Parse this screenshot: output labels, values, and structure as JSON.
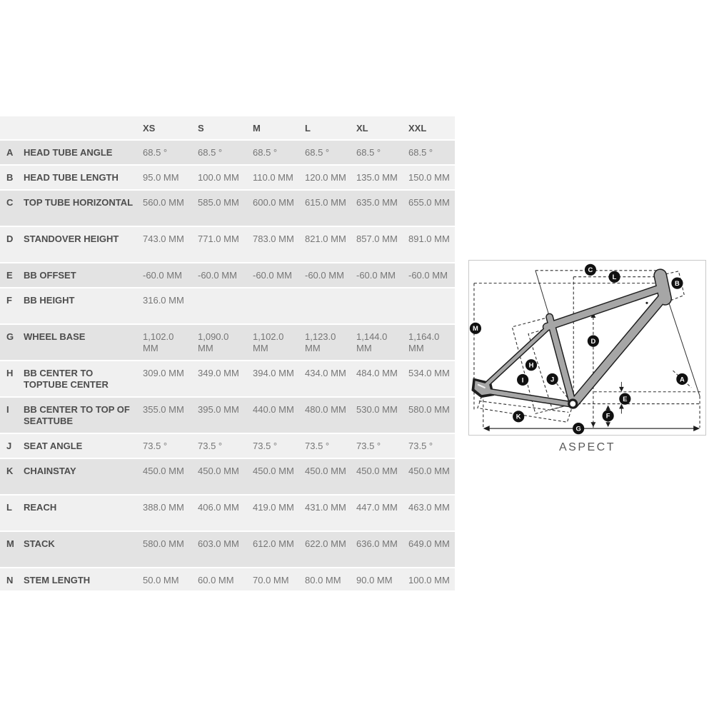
{
  "chart_data": {
    "type": "table",
    "title": "",
    "columns": [
      "XS",
      "S",
      "M",
      "L",
      "XL",
      "XXL"
    ],
    "rows": [
      {
        "letter": "A",
        "label": "HEAD TUBE ANGLE",
        "values": [
          "68.5 °",
          "68.5 °",
          "68.5 °",
          "68.5 °",
          "68.5 °",
          "68.5 °"
        ]
      },
      {
        "letter": "B",
        "label": "HEAD TUBE LENGTH",
        "values": [
          "95.0 MM",
          "100.0 MM",
          "110.0 MM",
          "120.0 MM",
          "135.0 MM",
          "150.0 MM"
        ]
      },
      {
        "letter": "C",
        "label": "TOP TUBE HORIZONTAL",
        "values": [
          "560.0 MM",
          "585.0 MM",
          "600.0 MM",
          "615.0 MM",
          "635.0 MM",
          "655.0 MM"
        ]
      },
      {
        "letter": "D",
        "label": "STANDOVER HEIGHT",
        "values": [
          "743.0 MM",
          "771.0 MM",
          "783.0 MM",
          "821.0 MM",
          "857.0 MM",
          "891.0 MM"
        ]
      },
      {
        "letter": "E",
        "label": "BB OFFSET",
        "values": [
          "-60.0 MM",
          "-60.0 MM",
          "-60.0 MM",
          "-60.0 MM",
          "-60.0 MM",
          "-60.0 MM"
        ]
      },
      {
        "letter": "F",
        "label": "BB HEIGHT",
        "values": [
          "316.0 MM",
          "",
          "",
          "",
          "",
          ""
        ]
      },
      {
        "letter": "G",
        "label": "WHEEL BASE",
        "values": [
          "1,102.0 MM",
          "1,090.0 MM",
          "1,102.0 MM",
          "1,123.0 MM",
          "1,144.0 MM",
          "1,164.0 MM"
        ]
      },
      {
        "letter": "H",
        "label": "BB CENTER TO TOPTUBE CENTER",
        "values": [
          "309.0 MM",
          "349.0 MM",
          "394.0 MM",
          "434.0 MM",
          "484.0 MM",
          "534.0 MM"
        ]
      },
      {
        "letter": "I",
        "label": "BB CENTER TO TOP OF SEATTUBE",
        "values": [
          "355.0 MM",
          "395.0 MM",
          "440.0 MM",
          "480.0 MM",
          "530.0 MM",
          "580.0 MM"
        ]
      },
      {
        "letter": "J",
        "label": "SEAT ANGLE",
        "values": [
          "73.5 °",
          "73.5 °",
          "73.5 °",
          "73.5 °",
          "73.5 °",
          "73.5 °"
        ]
      },
      {
        "letter": "K",
        "label": "CHAINSTAY",
        "values": [
          "450.0 MM",
          "450.0 MM",
          "450.0 MM",
          "450.0 MM",
          "450.0 MM",
          "450.0 MM"
        ]
      },
      {
        "letter": "L",
        "label": "REACH",
        "values": [
          "388.0 MM",
          "406.0 MM",
          "419.0 MM",
          "431.0 MM",
          "447.0 MM",
          "463.0 MM"
        ]
      },
      {
        "letter": "M",
        "label": "STACK",
        "values": [
          "580.0 MM",
          "603.0 MM",
          "612.0 MM",
          "622.0 MM",
          "636.0 MM",
          "649.0 MM"
        ]
      },
      {
        "letter": "N",
        "label": "STEM LENGTH",
        "values": [
          "50.0 MM",
          "60.0 MM",
          "70.0 MM",
          "80.0 MM",
          "90.0 MM",
          "100.0 MM"
        ]
      }
    ]
  },
  "table_style": {
    "header_bg": "#f2f2f2",
    "row_shade_dark": "#e3e3e3",
    "row_shade_light": "#f0f0f0",
    "label_color": "#4d4d4d",
    "value_color": "#767676"
  },
  "diagram": {
    "caption": "ASPECT",
    "badges": [
      "A",
      "B",
      "C",
      "D",
      "E",
      "F",
      "G",
      "H",
      "I",
      "J",
      "K",
      "L",
      "M"
    ],
    "colors": {
      "frame_fill": "#a6a6a6",
      "frame_outline": "#1e1e1e",
      "measure_line": "#2f2f2f",
      "badge_bg": "#111111",
      "badge_letter": "#ffffff",
      "box_border": "#c9c9c9"
    }
  }
}
